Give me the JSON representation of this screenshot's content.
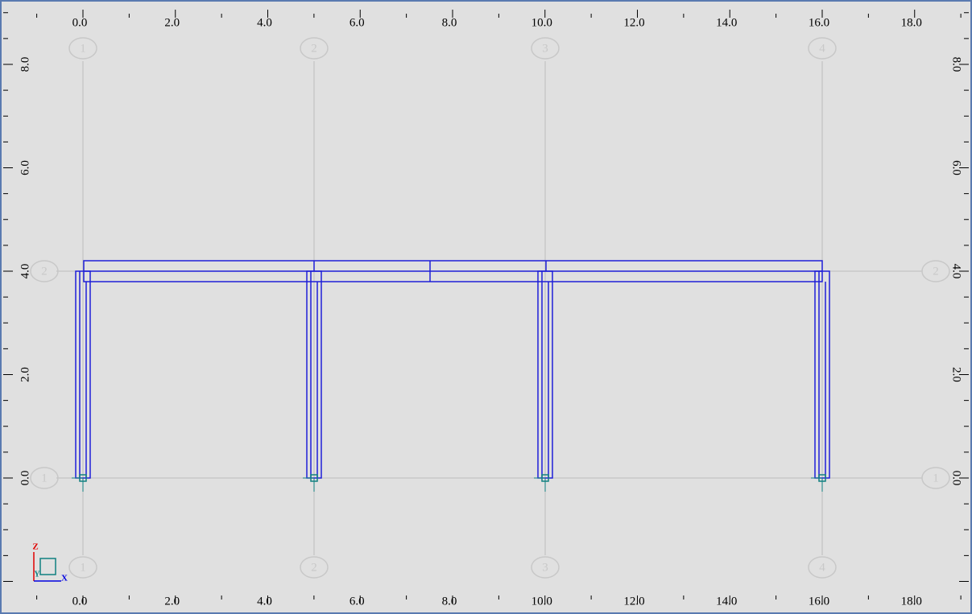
{
  "rulers": {
    "x_labels": [
      "0.0",
      "2.0",
      "4.0",
      "6.0",
      "8.0",
      "10.0",
      "12.0",
      "14.0",
      "16.0",
      "18.0"
    ],
    "y_labels": [
      "0.0",
      "2.0",
      "4.0",
      "6.0",
      "8.0"
    ]
  },
  "grid": {
    "columns": [
      "1",
      "2",
      "3",
      "4"
    ],
    "rows": [
      "1",
      "2"
    ]
  },
  "axes": {
    "z": "Z",
    "x": "X",
    "y": "Y"
  }
}
